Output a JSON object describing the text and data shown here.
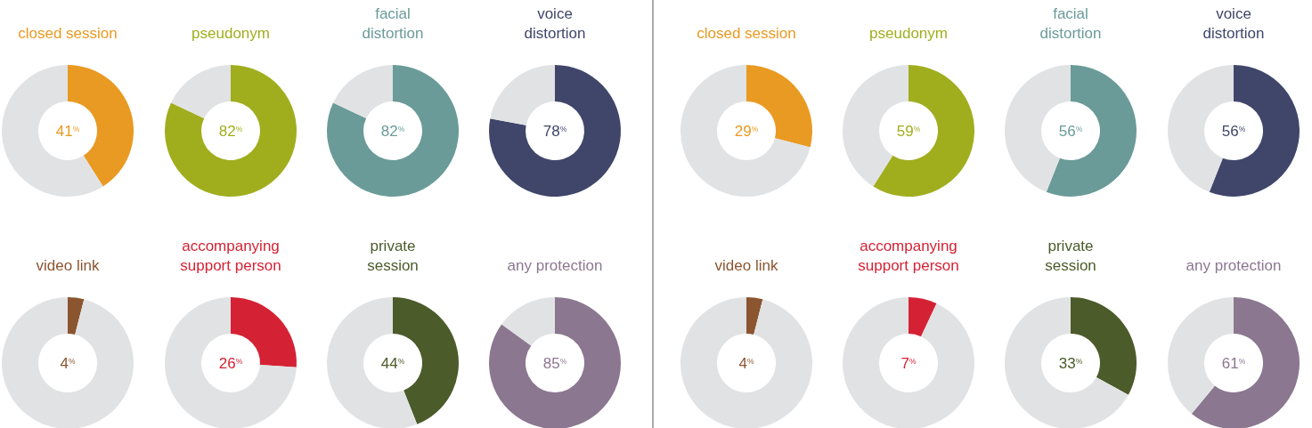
{
  "chart_data": [
    {
      "type": "donut",
      "title": "closed session",
      "categories": [
        null,
        null
      ],
      "values": [
        41,
        59
      ],
      "colors": [
        "#e99a22",
        "#e1e2e4"
      ],
      "annotations": [
        "41$^{%}$"
      ]
    },
    {
      "type": "donut",
      "title": "pseudonym",
      "categories": [
        null,
        null
      ],
      "values": [
        82,
        18
      ],
      "colors": [
        "#a0ae1e",
        "#e1e2e4"
      ],
      "annotations": [
        "82$^{%}$"
      ]
    },
    {
      "type": "donut",
      "title": "facial\ndistortion",
      "categories": [
        null,
        null
      ],
      "values": [
        82,
        18
      ],
      "colors": [
        "#6a9b98",
        "#e1e2e4"
      ],
      "annotations": [
        "82$^{%}$"
      ]
    },
    {
      "type": "donut",
      "title": "voice\ndistortion",
      "categories": [
        null,
        null
      ],
      "values": [
        78,
        22
      ],
      "colors": [
        "#40466a",
        "#e1e2e4"
      ],
      "annotations": [
        "78$^{%}$"
      ]
    },
    {
      "type": "donut",
      "title": "video link",
      "categories": [
        null,
        null
      ],
      "values": [
        4,
        96
      ],
      "colors": [
        "#8b5530",
        "#e1e2e4"
      ],
      "annotations": [
        "4$^{%}$"
      ]
    },
    {
      "type": "donut",
      "title": "accompanying\nsupport person",
      "categories": [
        null,
        null
      ],
      "values": [
        26,
        74
      ],
      "colors": [
        "#d42234",
        "#e1e2e4"
      ],
      "annotations": [
        "26$^{%}$"
      ]
    },
    {
      "type": "donut",
      "title": "private\nsession",
      "categories": [
        null,
        null
      ],
      "values": [
        44,
        56
      ],
      "colors": [
        "#4b5b2a",
        "#e1e2e4"
      ],
      "annotations": [
        "44$^{%}$"
      ]
    },
    {
      "type": "donut",
      "title": "any protection",
      "categories": [
        null,
        null
      ],
      "values": [
        85,
        15
      ],
      "colors": [
        "#8b7790",
        "#e1e2e4"
      ],
      "annotations": [
        "85$^{%}$"
      ]
    },
    {
      "type": "donut",
      "title": "closed session",
      "categories": [
        null,
        null
      ],
      "values": [
        29,
        71
      ],
      "colors": [
        "#e99a22",
        "#e1e2e4"
      ],
      "annotations": [
        "29$^{%}$"
      ]
    },
    {
      "type": "donut",
      "title": "pseudonym",
      "categories": [
        null,
        null
      ],
      "values": [
        59,
        41
      ],
      "colors": [
        "#a0ae1e",
        "#e1e2e4"
      ],
      "annotations": [
        "59$^{%}$"
      ]
    },
    {
      "type": "donut",
      "title": "facial\ndistortion",
      "categories": [
        null,
        null
      ],
      "values": [
        56,
        44
      ],
      "colors": [
        "#6a9b98",
        "#e1e2e4"
      ],
      "annotations": [
        "56$^{%}$"
      ]
    },
    {
      "type": "donut",
      "title": "voice\ndistortion",
      "categories": [
        null,
        null
      ],
      "values": [
        56,
        44
      ],
      "colors": [
        "#40466a",
        "#e1e2e4"
      ],
      "annotations": [
        "56$^{%}$"
      ]
    },
    {
      "type": "donut",
      "title": "video link",
      "categories": [
        null,
        null
      ],
      "values": [
        4,
        96
      ],
      "colors": [
        "#8b5530",
        "#e1e2e4"
      ],
      "annotations": [
        "4$^{%}$"
      ]
    },
    {
      "type": "donut",
      "title": "accompanying\nsupport person",
      "categories": [
        null,
        null
      ],
      "values": [
        7,
        93
      ],
      "colors": [
        "#d42234",
        "#e1e2e4"
      ],
      "annotations": [
        "7$^{%}$"
      ]
    },
    {
      "type": "donut",
      "title": "private\nsession",
      "categories": [
        null,
        null
      ],
      "values": [
        33,
        67
      ],
      "colors": [
        "#4b5b2a",
        "#e1e2e4"
      ],
      "annotations": [
        "33$^{%}$"
      ]
    },
    {
      "type": "donut",
      "title": "any protection",
      "categories": [
        null,
        null
      ],
      "values": [
        61,
        39
      ],
      "colors": [
        "#8b7790",
        "#e1e2e4"
      ],
      "annotations": [
        "61$^{%}$"
      ]
    }
  ]
}
